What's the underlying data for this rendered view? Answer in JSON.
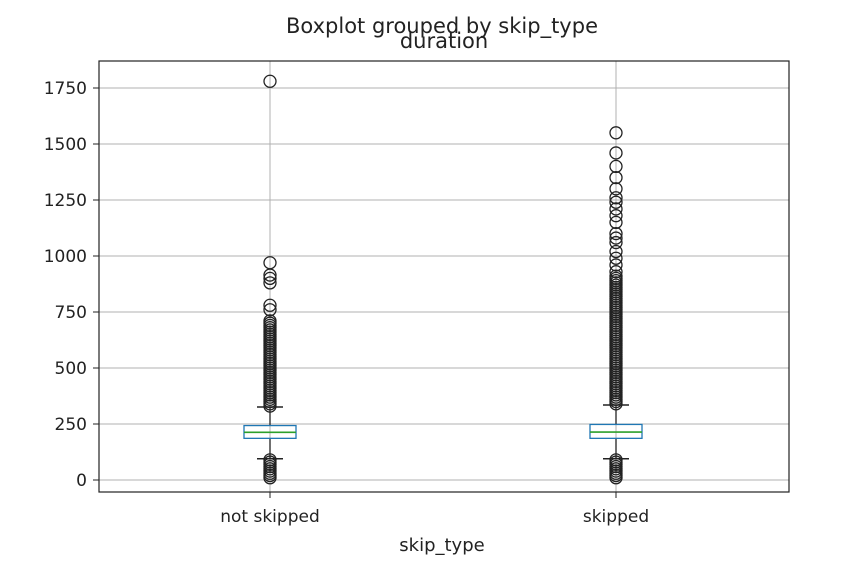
{
  "chart_data": {
    "type": "box",
    "suptitle": "Boxplot grouped by skip_type",
    "title": "duration",
    "xlabel": "skip_type",
    "ylabel": "",
    "categories": [
      "not skipped",
      "skipped"
    ],
    "ylim": [
      -30,
      1840
    ],
    "yticks": [
      0,
      250,
      500,
      750,
      1000,
      1250,
      1500,
      1750
    ],
    "grid": true,
    "box_color": "#1f77b4",
    "median_color": "#2ca02c",
    "groups": [
      {
        "name": "not skipped",
        "q1": 186,
        "median": 213,
        "q3": 243,
        "whisker_low": 95,
        "whisker_high": 326,
        "outliers_high": [
          330,
          340,
          350,
          360,
          370,
          380,
          390,
          400,
          410,
          420,
          430,
          440,
          450,
          460,
          470,
          480,
          490,
          500,
          510,
          520,
          530,
          540,
          550,
          560,
          570,
          580,
          590,
          600,
          610,
          620,
          630,
          640,
          650,
          660,
          670,
          680,
          690,
          700,
          710,
          760,
          780,
          880,
          900,
          915,
          970,
          1780
        ],
        "outliers_low": [
          10,
          20,
          30,
          40,
          50,
          60,
          70,
          80,
          90
        ]
      },
      {
        "name": "skipped",
        "q1": 186,
        "median": 214,
        "q3": 248,
        "whisker_low": 95,
        "whisker_high": 335,
        "outliers_high": [
          340,
          350,
          360,
          370,
          380,
          390,
          400,
          410,
          420,
          430,
          440,
          450,
          460,
          470,
          480,
          490,
          500,
          510,
          520,
          530,
          540,
          550,
          560,
          570,
          580,
          590,
          600,
          610,
          620,
          630,
          640,
          650,
          660,
          670,
          680,
          690,
          700,
          710,
          720,
          730,
          740,
          750,
          760,
          770,
          780,
          790,
          800,
          810,
          820,
          830,
          840,
          850,
          860,
          870,
          880,
          890,
          900,
          910,
          930,
          960,
          990,
          1020,
          1060,
          1080,
          1100,
          1150,
          1180,
          1210,
          1240,
          1260,
          1300,
          1350,
          1400,
          1460,
          1550
        ],
        "outliers_low": [
          10,
          20,
          30,
          40,
          50,
          60,
          70,
          80,
          90
        ]
      }
    ]
  }
}
